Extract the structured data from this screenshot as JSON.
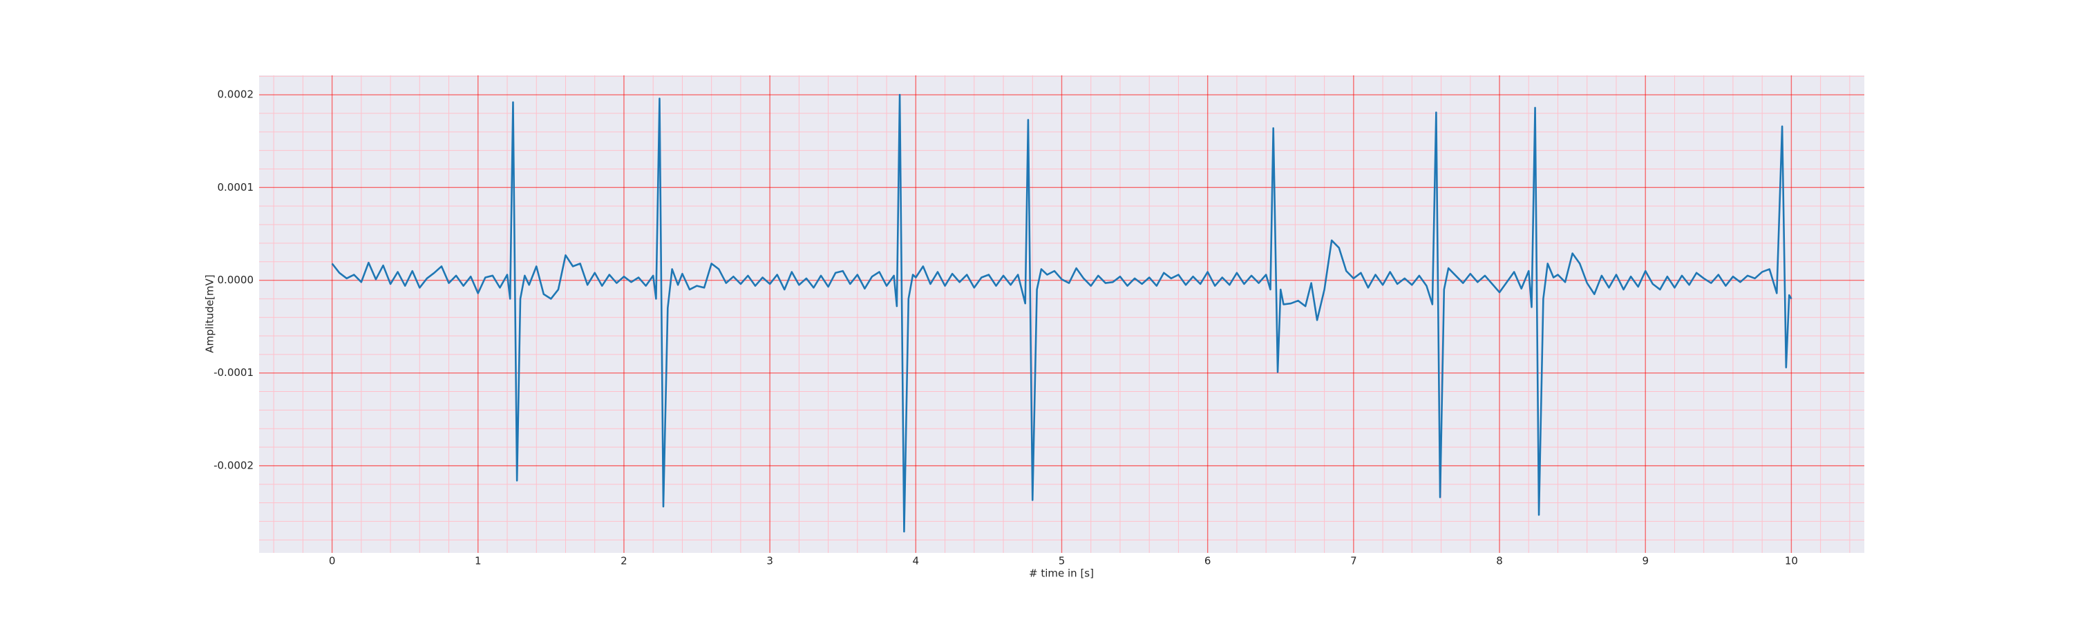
{
  "chart_data": {
    "type": "line",
    "xlabel": "# time in [s]",
    "ylabel": "Amplitude[mV]",
    "color": "#1f77b4",
    "grid": true,
    "minor_grid": true,
    "xlim": [
      -0.5,
      10.5
    ],
    "ylim": [
      -0.000294,
      0.000221
    ],
    "xticks": [
      0,
      1,
      2,
      3,
      4,
      5,
      6,
      7,
      8,
      9,
      10
    ],
    "yticks": [
      -0.0002,
      -0.0001,
      {
        "value": 0,
        "label": "0.0000"
      },
      0.0001,
      0.0002
    ],
    "x": [
      0.0,
      0.05,
      0.1,
      0.15,
      0.2,
      0.25,
      0.3,
      0.35,
      0.4,
      0.45,
      0.5,
      0.55,
      0.6,
      0.65,
      0.7,
      0.75,
      0.8,
      0.85,
      0.9,
      0.95,
      1.0,
      1.05,
      1.1,
      1.15,
      1.2,
      1.22,
      1.24,
      1.267,
      1.29,
      1.32,
      1.35,
      1.4,
      1.45,
      1.5,
      1.55,
      1.6,
      1.65,
      1.7,
      1.75,
      1.8,
      1.85,
      1.9,
      1.95,
      2.0,
      2.05,
      2.1,
      2.15,
      2.2,
      2.22,
      2.244,
      2.27,
      2.3,
      2.33,
      2.37,
      2.4,
      2.45,
      2.5,
      2.55,
      2.6,
      2.65,
      2.7,
      2.75,
      2.8,
      2.85,
      2.9,
      2.95,
      3.0,
      3.05,
      3.1,
      3.15,
      3.2,
      3.25,
      3.3,
      3.35,
      3.4,
      3.45,
      3.5,
      3.55,
      3.6,
      3.65,
      3.7,
      3.75,
      3.8,
      3.85,
      3.87,
      3.89,
      3.92,
      3.95,
      3.98,
      4.0,
      4.05,
      4.1,
      4.15,
      4.2,
      4.25,
      4.3,
      4.35,
      4.4,
      4.45,
      4.5,
      4.55,
      4.6,
      4.65,
      4.7,
      4.75,
      4.77,
      4.8,
      4.83,
      4.86,
      4.9,
      4.95,
      5.0,
      5.05,
      5.1,
      5.15,
      5.2,
      5.25,
      5.3,
      5.35,
      5.4,
      5.45,
      5.5,
      5.55,
      5.6,
      5.65,
      5.7,
      5.75,
      5.8,
      5.85,
      5.9,
      5.95,
      6.0,
      6.05,
      6.1,
      6.15,
      6.2,
      6.25,
      6.3,
      6.35,
      6.4,
      6.43,
      6.45,
      6.48,
      6.5,
      6.52,
      6.57,
      6.62,
      6.67,
      6.71,
      6.75,
      6.8,
      6.85,
      6.9,
      6.95,
      7.0,
      7.05,
      7.1,
      7.15,
      7.2,
      7.25,
      7.3,
      7.35,
      7.4,
      7.45,
      7.5,
      7.54,
      7.566,
      7.593,
      7.62,
      7.65,
      7.7,
      7.75,
      7.8,
      7.85,
      7.9,
      7.95,
      8.0,
      8.05,
      8.1,
      8.15,
      8.2,
      8.22,
      8.244,
      8.27,
      8.3,
      8.33,
      8.37,
      8.4,
      8.45,
      8.5,
      8.55,
      8.6,
      8.65,
      8.7,
      8.75,
      8.8,
      8.85,
      8.9,
      8.95,
      9.0,
      9.05,
      9.1,
      9.15,
      9.2,
      9.25,
      9.3,
      9.35,
      9.4,
      9.45,
      9.5,
      9.55,
      9.6,
      9.65,
      9.7,
      9.75,
      9.8,
      9.85,
      9.9,
      9.937,
      9.964,
      9.985,
      10.0
    ],
    "values": [
      1.8e-05,
      8e-06,
      2e-06,
      6e-06,
      -2e-06,
      1.9e-05,
      1e-06,
      1.6e-05,
      -4e-06,
      9e-06,
      -6e-06,
      1e-05,
      -8e-06,
      2e-06,
      8e-06,
      1.5e-05,
      -3e-06,
      5e-06,
      -6e-06,
      4e-06,
      -1.4e-05,
      3e-06,
      5e-06,
      -8e-06,
      6e-06,
      -2e-05,
      0.000192,
      -0.000216,
      -2e-05,
      5e-06,
      -5e-06,
      1.5e-05,
      -1.5e-05,
      -2e-05,
      -1e-05,
      2.7e-05,
      1.5e-05,
      1.8e-05,
      -5e-06,
      8e-06,
      -6e-06,
      6e-06,
      -3e-06,
      4e-06,
      -2e-06,
      3e-06,
      -6e-06,
      5e-06,
      -2e-05,
      0.000196,
      -0.000244,
      -3e-05,
      1.2e-05,
      -5e-06,
      7e-06,
      -1e-05,
      -6e-06,
      -8e-06,
      1.8e-05,
      1.2e-05,
      -3e-06,
      4e-06,
      -4e-06,
      5e-06,
      -6e-06,
      3e-06,
      -4e-06,
      6e-06,
      -1e-05,
      9e-06,
      -5e-06,
      2e-06,
      -8e-06,
      5e-06,
      -7e-06,
      8e-06,
      1e-05,
      -4e-06,
      6e-06,
      -9e-06,
      4e-06,
      9e-06,
      -6e-06,
      5e-06,
      -2.8e-05,
      0.0002,
      -0.000271,
      -2e-05,
      6e-06,
      3e-06,
      1.5e-05,
      -4e-06,
      9e-06,
      -6e-06,
      7e-06,
      -2e-06,
      6e-06,
      -8e-06,
      3e-06,
      6e-06,
      -6e-06,
      5e-06,
      -5e-06,
      6e-06,
      -2.5e-05,
      0.000173,
      -0.000237,
      -1e-05,
      1.2e-05,
      6e-06,
      1e-05,
      1e-06,
      -3e-06,
      1.3e-05,
      2e-06,
      -6e-06,
      5e-06,
      -3e-06,
      -2e-06,
      4e-06,
      -6e-06,
      2e-06,
      -4e-06,
      3e-06,
      -6e-06,
      8e-06,
      2e-06,
      6e-06,
      -5e-06,
      4e-06,
      -4e-06,
      9e-06,
      -6e-06,
      3e-06,
      -5e-06,
      8e-06,
      -4e-06,
      5e-06,
      -3e-06,
      6e-06,
      -1e-05,
      0.000164,
      -9.9e-05,
      -1e-05,
      -2.6e-05,
      -2.5e-05,
      -2.2e-05,
      -2.8e-05,
      -3e-06,
      -4.3e-05,
      -1e-05,
      4.3e-05,
      3.5e-05,
      1e-05,
      2e-06,
      8e-06,
      -8e-06,
      6e-06,
      -5e-06,
      9e-06,
      -4e-06,
      2e-06,
      -5e-06,
      5e-06,
      -6e-06,
      -2.6e-05,
      0.000181,
      -0.000234,
      -1e-05,
      1.3e-05,
      5e-06,
      -3e-06,
      7e-06,
      -2e-06,
      5e-06,
      -4e-06,
      -1.3e-05,
      -2e-06,
      9e-06,
      -9e-06,
      1e-05,
      -2.9e-05,
      0.000186,
      -0.000253,
      -2e-05,
      1.8e-05,
      3e-06,
      6e-06,
      -2e-06,
      2.9e-05,
      1.8e-05,
      -3e-06,
      -1.5e-05,
      5e-06,
      -8e-06,
      6e-06,
      -1e-05,
      4e-06,
      -7e-06,
      1e-05,
      -4e-06,
      -1e-05,
      4e-06,
      -8e-06,
      5e-06,
      -5e-06,
      8e-06,
      2e-06,
      -3e-06,
      6e-06,
      -6e-06,
      4e-06,
      -2e-06,
      5e-06,
      2e-06,
      9e-06,
      1.2e-05,
      -1.4e-05,
      0.000166,
      -9.4e-05,
      -1.6e-05,
      -2e-05
    ]
  }
}
